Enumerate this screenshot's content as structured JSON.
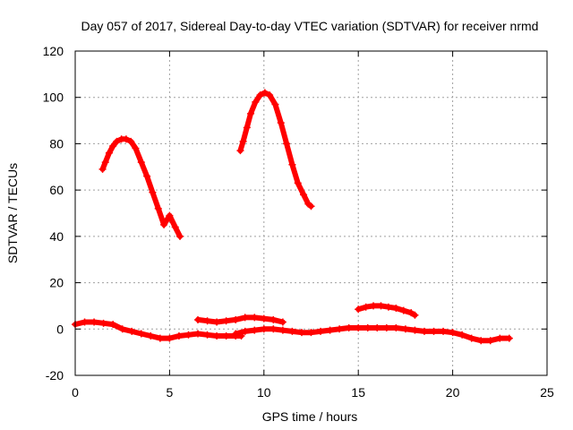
{
  "chart_data": {
    "type": "scatter",
    "title": "Day 057 of 2017, Sidereal Day-to-day VTEC variation (SDTVAR) for receiver nrmd",
    "xlabel": "GPS time / hours",
    "ylabel": "SDTVAR / TECUs",
    "xlim": [
      0,
      25
    ],
    "ylim": [
      -20,
      120
    ],
    "x_ticks": [
      0,
      5,
      10,
      15,
      20,
      25
    ],
    "y_ticks": [
      -20,
      0,
      20,
      40,
      60,
      80,
      100,
      120
    ],
    "grid": true,
    "marker_color": "#ff0000",
    "series": [
      {
        "name": "arc-peak-1",
        "x": [
          1.45,
          1.6,
          1.8,
          2.0,
          2.2,
          2.45,
          2.7,
          2.95,
          3.2,
          3.5,
          3.8,
          4.1,
          4.4,
          4.7,
          5.0,
          5.3,
          5.55
        ],
        "y": [
          69,
          72,
          76,
          79,
          81,
          82,
          82,
          81,
          78,
          72,
          66,
          59,
          52,
          45,
          49,
          44,
          40
        ]
      },
      {
        "name": "arc-peak-2",
        "x": [
          8.75,
          8.9,
          9.1,
          9.3,
          9.55,
          9.8,
          10.05,
          10.3,
          10.6,
          10.9,
          11.2,
          11.5,
          11.8,
          12.1,
          12.35,
          12.5
        ],
        "y": [
          77,
          81,
          87,
          93,
          98,
          101,
          102,
          101,
          97,
          89,
          80,
          71,
          63,
          58,
          54,
          53
        ]
      },
      {
        "name": "ground-segment-1",
        "x": [
          0.0,
          0.5,
          1.0,
          1.5,
          2.0,
          2.5,
          3.0,
          3.5,
          4.0,
          4.5,
          5.0,
          5.5,
          6.0,
          6.5,
          7.0,
          7.5,
          8.0,
          8.5,
          8.8
        ],
        "y": [
          2,
          3,
          3,
          2.5,
          2,
          0,
          -1,
          -2,
          -3,
          -4,
          -4,
          -3,
          -2.5,
          -2,
          -2.5,
          -3,
          -3,
          -3,
          -3
        ]
      },
      {
        "name": "ground-segment-2",
        "x": [
          6.5,
          7.0,
          7.5,
          8.0,
          8.5,
          9.0,
          9.5,
          10.0,
          10.5,
          11.0
        ],
        "y": [
          4,
          3.5,
          3,
          3.5,
          4,
          5,
          5,
          4.5,
          4,
          3
        ]
      },
      {
        "name": "ground-segment-3",
        "x": [
          8.5,
          9.0,
          9.5,
          10.0,
          10.5,
          11.0,
          11.5,
          12.0,
          12.5,
          13.0,
          13.5,
          14.0,
          14.5,
          15.0,
          15.5,
          16.0,
          16.5,
          17.0,
          17.5,
          18.0,
          18.5,
          19.0,
          19.5,
          20.0,
          20.5,
          21.0,
          21.5,
          22.0,
          22.5,
          23.0
        ],
        "y": [
          -2,
          -1,
          -0.5,
          0,
          0,
          -0.5,
          -1,
          -1.5,
          -1.5,
          -1,
          -0.5,
          0,
          0.5,
          0.5,
          0.5,
          0.5,
          0.5,
          0.5,
          0,
          -0.5,
          -1,
          -1,
          -1,
          -1.5,
          -2.5,
          -4,
          -5,
          -5,
          -4,
          -4
        ]
      },
      {
        "name": "arc-small",
        "x": [
          15.0,
          15.4,
          15.8,
          16.2,
          16.6,
          17.0,
          17.4,
          17.8,
          18.0
        ],
        "y": [
          8.5,
          9.5,
          10,
          10,
          9.5,
          9,
          8,
          7,
          6
        ]
      }
    ]
  }
}
